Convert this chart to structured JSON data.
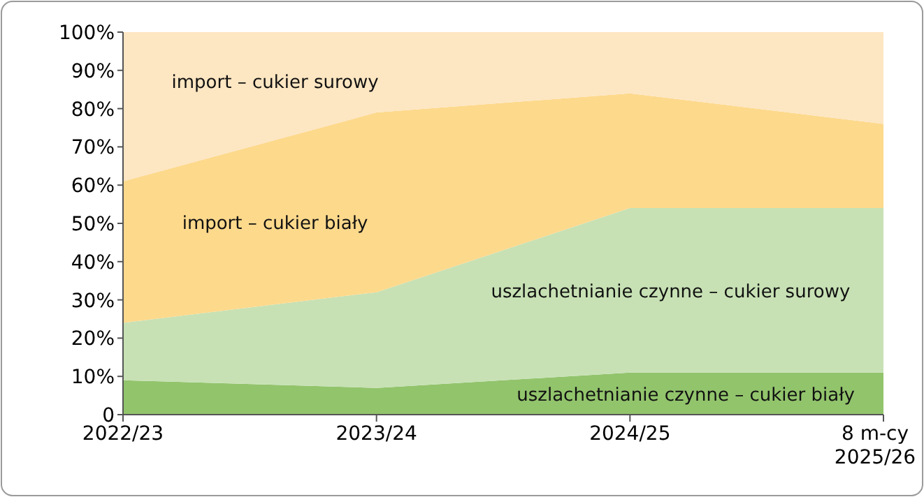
{
  "chart_data": {
    "type": "area",
    "stacked": true,
    "categories": [
      "2022/23",
      "2023/24",
      "2024/25",
      "8 m-cy\n2025/26"
    ],
    "ylim": [
      0,
      100
    ],
    "yticks": [
      {
        "value": 0,
        "label": "0"
      },
      {
        "value": 10,
        "label": "10%"
      },
      {
        "value": 20,
        "label": "20%"
      },
      {
        "value": 30,
        "label": "30%"
      },
      {
        "value": 40,
        "label": "40%"
      },
      {
        "value": 50,
        "label": "50%"
      },
      {
        "value": 60,
        "label": "60%"
      },
      {
        "value": 70,
        "label": "70%"
      },
      {
        "value": 80,
        "label": "80%"
      },
      {
        "value": 90,
        "label": "90%"
      },
      {
        "value": 100,
        "label": "100%"
      }
    ],
    "series": [
      {
        "name": "uszlachetnianie czynne – cukier biały",
        "color": "#92c46c",
        "values": [
          9,
          7,
          11,
          11
        ]
      },
      {
        "name": "uszlachetnianie czynne – cukier surowy",
        "color": "#c7e1b4",
        "values": [
          15,
          25,
          43,
          43
        ]
      },
      {
        "name": "import – cukier biały",
        "color": "#fdd98c",
        "values": [
          37,
          47,
          30,
          22
        ]
      },
      {
        "name": "import – cukier surowy",
        "color": "#fde6c2",
        "values": [
          39,
          21,
          16,
          24
        ]
      }
    ]
  }
}
